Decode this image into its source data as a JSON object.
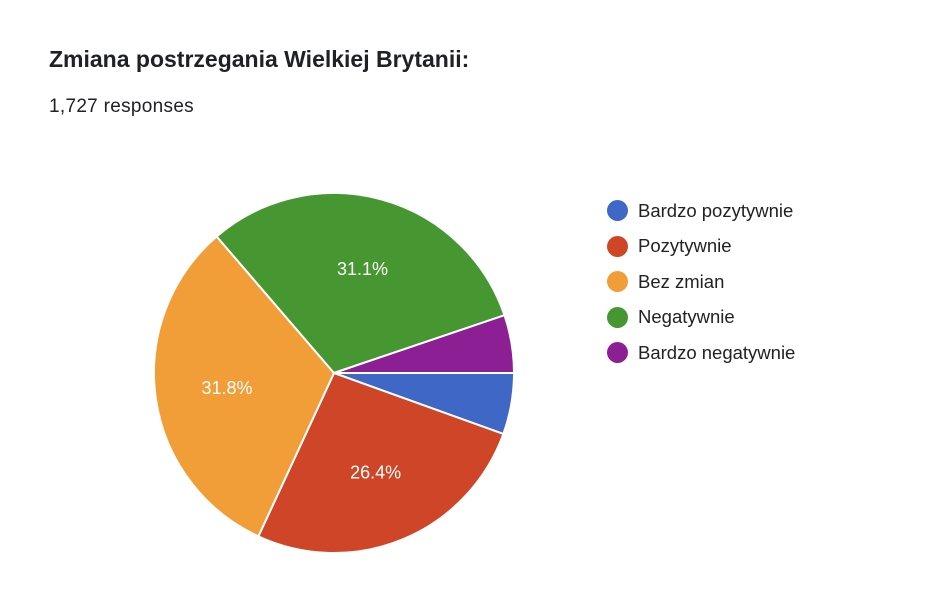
{
  "chart_data": {
    "type": "pie",
    "title": "Zmiana postrzegania Wielkiej Brytanii:",
    "subtitle": "1,727 responses",
    "categories": [
      "Bardzo pozytywnie",
      "Pozytywnie",
      "Bez zmian",
      "Negatywnie",
      "Bardzo negatywnie"
    ],
    "values": [
      5.5,
      26.4,
      31.8,
      31.1,
      5.2
    ],
    "value_labels": [
      "",
      "26.4%",
      "31.8%",
      "31.1%",
      ""
    ],
    "colors": [
      "#3f67c6",
      "#cf4527",
      "#f19d38",
      "#469632",
      "#8b1f93"
    ],
    "legend_position": "right"
  }
}
